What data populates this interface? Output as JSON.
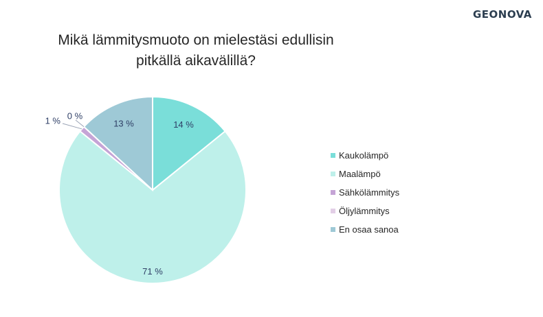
{
  "brand": "GEONOVA",
  "chart_data": {
    "type": "pie",
    "title": [
      "Mikä lämmitysmuoto on mielestäsi edullisin",
      "pitkällä aikavälillä?"
    ],
    "categories": [
      "Kaukolämpö",
      "Maalämpö",
      "Sähkölämmitys",
      "Öljylämmitys",
      "En osaa sanoa"
    ],
    "values": [
      14,
      71,
      1,
      0,
      13
    ],
    "data_labels": [
      "14 %",
      "71 %",
      "1 %",
      "0 %",
      "13 %"
    ],
    "colors": [
      "#7ADED9",
      "#BEF0EA",
      "#C5A4D6",
      "#E2CEE6",
      "#9EC9D6"
    ],
    "start_angle_deg": 0,
    "direction": "clockwise",
    "legend_position": "right"
  }
}
